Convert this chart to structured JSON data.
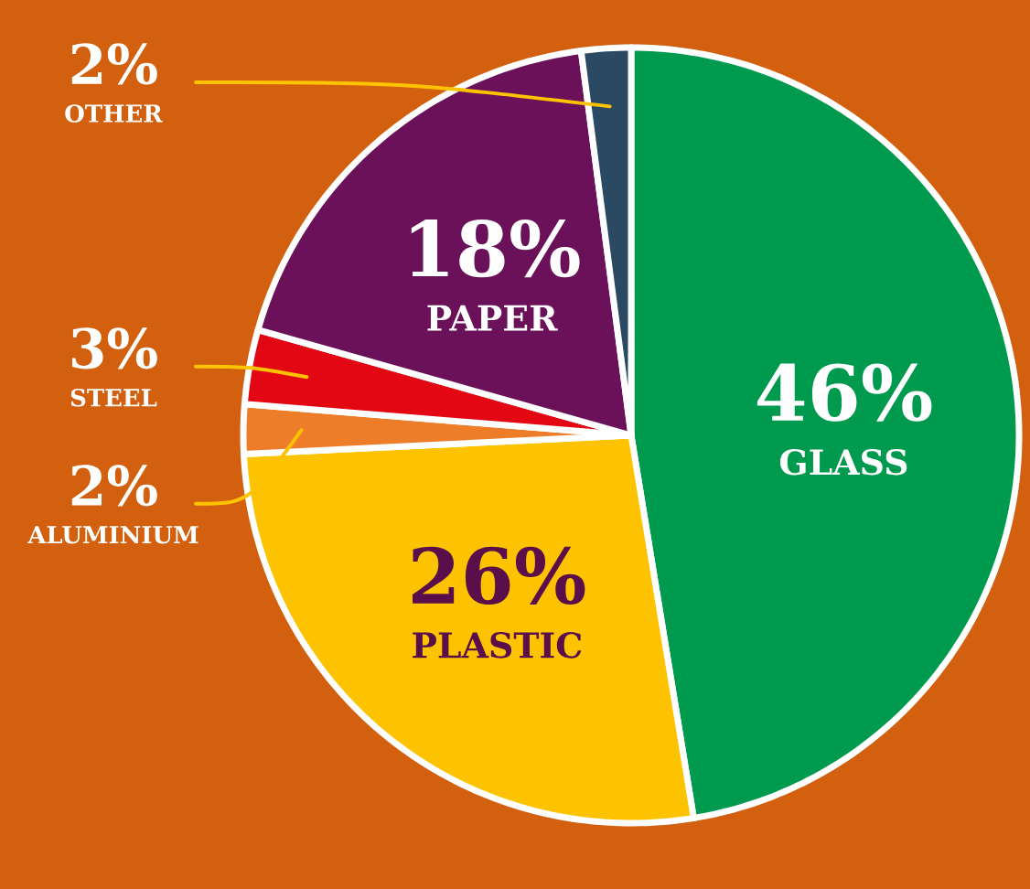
{
  "chart_data": {
    "type": "pie",
    "categories": [
      "GLASS",
      "PLASTIC",
      "ALUMINIUM",
      "STEEL",
      "PAPER",
      "OTHER"
    ],
    "values": [
      46,
      26,
      2,
      3,
      18,
      2
    ],
    "value_labels": [
      "46%",
      "26%",
      "2%",
      "3%",
      "18%",
      "2%"
    ],
    "colors": [
      "#009a4e",
      "#fdc300",
      "#ee7d2a",
      "#e30613",
      "#6a1159",
      "#2a4a63"
    ]
  }
}
